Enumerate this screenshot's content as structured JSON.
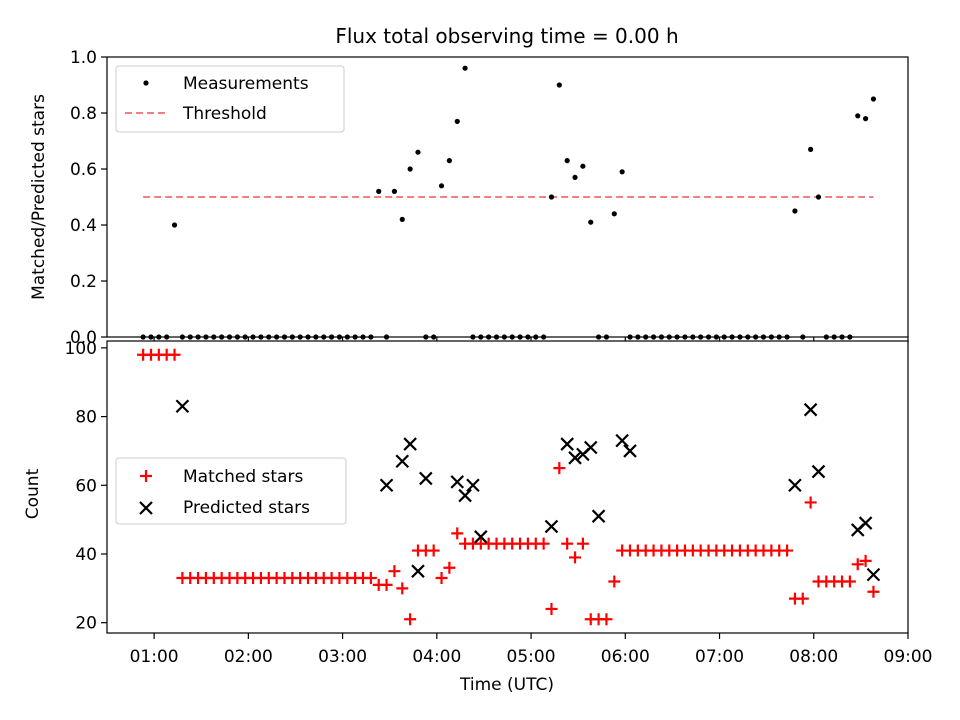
{
  "chart_data": [
    {
      "type": "scatter",
      "title": "Flux total observing time = 0.00 h",
      "xlabel": "",
      "ylabel": "Matched/Predicted stars",
      "ylim": [
        0,
        1.0
      ],
      "yticks": [
        "0.0",
        "0.2",
        "0.4",
        "0.6",
        "0.8",
        "1.0"
      ],
      "xticks": [
        "01:00",
        "02:00",
        "03:00",
        "04:00",
        "05:00",
        "06:00",
        "07:00",
        "08:00",
        "09:00"
      ],
      "xlim": [
        "00:30",
        "09:00"
      ],
      "legend_placement": "top-left",
      "series": [
        {
          "name": "Measurements",
          "marker": "dot",
          "color": "#000000",
          "x": [
            "00:53",
            "00:58",
            "01:03",
            "01:08",
            "01:13",
            "01:18",
            "01:23",
            "01:28",
            "01:33",
            "01:38",
            "01:43",
            "01:48",
            "01:53",
            "01:58",
            "02:03",
            "02:08",
            "02:13",
            "02:18",
            "02:23",
            "02:28",
            "02:33",
            "02:38",
            "02:43",
            "02:48",
            "02:53",
            "02:58",
            "03:03",
            "03:08",
            "03:13",
            "03:18",
            "03:23",
            "03:28",
            "03:33",
            "03:38",
            "03:43",
            "03:48",
            "03:53",
            "03:58",
            "04:03",
            "04:08",
            "04:13",
            "04:18",
            "04:23",
            "04:28",
            "04:33",
            "04:38",
            "04:43",
            "04:48",
            "04:53",
            "04:58",
            "05:03",
            "05:08",
            "05:13",
            "05:18",
            "05:23",
            "05:28",
            "05:33",
            "05:38",
            "05:43",
            "05:48",
            "05:53",
            "05:58",
            "06:03",
            "06:08",
            "06:13",
            "06:18",
            "06:23",
            "06:28",
            "06:33",
            "06:38",
            "06:43",
            "06:48",
            "06:53",
            "06:58",
            "07:03",
            "07:08",
            "07:13",
            "07:18",
            "07:23",
            "07:28",
            "07:33",
            "07:38",
            "07:43",
            "07:48",
            "07:53",
            "07:58",
            "08:03",
            "08:08",
            "08:13",
            "08:18",
            "08:23",
            "08:28",
            "08:33",
            "08:38"
          ],
          "y": [
            0,
            0,
            0,
            0,
            0.4,
            0,
            0,
            0,
            0,
            0,
            0,
            0,
            0,
            0,
            0,
            0,
            0,
            0,
            0,
            0,
            0,
            0,
            0,
            0,
            0,
            0,
            0,
            0,
            0,
            0,
            0.52,
            0,
            0.52,
            0.42,
            0.6,
            0.66,
            0,
            0,
            0.54,
            0.63,
            0.77,
            0.96,
            0,
            0,
            0,
            0,
            0,
            0,
            0,
            0,
            0,
            0,
            0.5,
            0.9,
            0.63,
            0.57,
            0.61,
            0.41,
            0,
            0,
            0.44,
            0.59,
            0,
            0,
            0,
            0,
            0,
            0,
            0,
            0,
            0,
            0,
            0,
            0,
            0,
            0,
            0,
            0,
            0,
            0,
            0,
            0,
            0,
            0.45,
            0,
            0.67,
            0.5,
            0,
            0,
            0,
            0,
            0.79,
            0.78,
            0.85
          ]
        }
      ],
      "reference_lines": [
        {
          "name": "Threshold",
          "y": 0.5,
          "x_from": "00:53",
          "x_to": "08:38",
          "style": "dashed",
          "color": "#f28080"
        }
      ]
    },
    {
      "type": "scatter",
      "title": "",
      "xlabel": "Time (UTC)",
      "ylabel": "Count",
      "ylim": [
        17,
        102
      ],
      "yticks": [
        "20",
        "40",
        "60",
        "80",
        "100"
      ],
      "xticks": [
        "01:00",
        "02:00",
        "03:00",
        "04:00",
        "05:00",
        "06:00",
        "07:00",
        "08:00",
        "09:00"
      ],
      "xlim": [
        "00:30",
        "09:00"
      ],
      "legend_placement": "center-left",
      "series": [
        {
          "name": "Matched stars",
          "marker": "plus",
          "color": "#ff0000",
          "x": [
            "00:53",
            "00:58",
            "01:03",
            "01:08",
            "01:13",
            "01:18",
            "01:23",
            "01:28",
            "01:33",
            "01:38",
            "01:43",
            "01:48",
            "01:53",
            "01:58",
            "02:03",
            "02:08",
            "02:13",
            "02:18",
            "02:23",
            "02:28",
            "02:33",
            "02:38",
            "02:43",
            "02:48",
            "02:53",
            "02:58",
            "03:03",
            "03:08",
            "03:13",
            "03:18",
            "03:23",
            "03:28",
            "03:33",
            "03:38",
            "03:43",
            "03:48",
            "03:53",
            "03:58",
            "04:03",
            "04:08",
            "04:13",
            "04:18",
            "04:23",
            "04:28",
            "04:33",
            "04:38",
            "04:43",
            "04:48",
            "04:53",
            "04:58",
            "05:03",
            "05:08",
            "05:13",
            "05:18",
            "05:23",
            "05:28",
            "05:33",
            "05:38",
            "05:43",
            "05:48",
            "05:53",
            "05:58",
            "06:03",
            "06:08",
            "06:13",
            "06:18",
            "06:23",
            "06:28",
            "06:33",
            "06:38",
            "06:43",
            "06:48",
            "06:53",
            "06:58",
            "07:03",
            "07:08",
            "07:13",
            "07:18",
            "07:23",
            "07:28",
            "07:33",
            "07:38",
            "07:43",
            "07:48",
            "07:53",
            "07:58",
            "08:03",
            "08:08",
            "08:13",
            "08:18",
            "08:23",
            "08:28",
            "08:33",
            "08:38"
          ],
          "y": [
            98,
            98,
            98,
            98,
            98,
            33,
            33,
            33,
            33,
            33,
            33,
            33,
            33,
            33,
            33,
            33,
            33,
            33,
            33,
            33,
            33,
            33,
            33,
            33,
            33,
            33,
            33,
            33,
            33,
            33,
            31,
            31,
            35,
            30,
            21,
            41,
            41,
            41,
            33,
            36,
            46,
            43,
            43,
            43,
            43,
            43,
            43,
            43,
            43,
            43,
            43,
            43,
            24,
            65,
            43,
            39,
            43,
            21,
            21,
            21,
            32,
            41,
            41,
            41,
            41,
            41,
            41,
            41,
            41,
            41,
            41,
            41,
            41,
            41,
            41,
            41,
            41,
            41,
            41,
            41,
            41,
            41,
            41,
            27,
            27,
            55,
            32,
            32,
            32,
            32,
            32,
            37,
            38,
            29
          ]
        },
        {
          "name": "Predicted stars",
          "marker": "x",
          "color": "#000000",
          "x": [
            "01:18",
            "03:28",
            "03:38",
            "03:43",
            "03:48",
            "03:53",
            "04:13",
            "04:18",
            "04:23",
            "04:28",
            "05:13",
            "05:23",
            "05:28",
            "05:33",
            "05:38",
            "05:43",
            "05:58",
            "06:03",
            "07:48",
            "07:58",
            "08:03",
            "08:28",
            "08:33",
            "08:38"
          ],
          "y": [
            83,
            60,
            67,
            72,
            35,
            62,
            61,
            57,
            60,
            45,
            48,
            72,
            68,
            69,
            71,
            51,
            73,
            70,
            60,
            82,
            64,
            47,
            49,
            34
          ]
        }
      ]
    }
  ]
}
